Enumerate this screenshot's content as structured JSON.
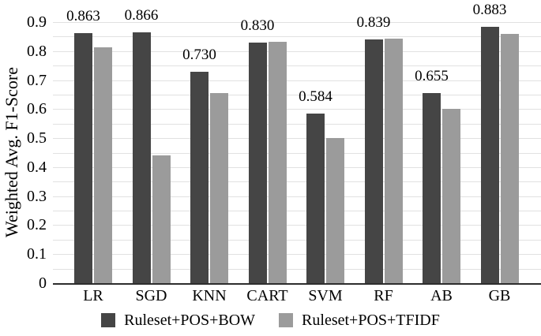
{
  "chart_data": {
    "type": "bar",
    "title": "",
    "xlabel": "",
    "ylabel": "Weighted Avg. F1-Score",
    "categories": [
      "LR",
      "SGD",
      "KNN",
      "CART",
      "SVM",
      "RF",
      "AB",
      "GB"
    ],
    "series": [
      {
        "name": "Ruleset+POS+BOW",
        "color": "#454545",
        "values": [
          0.863,
          0.866,
          0.73,
          0.83,
          0.584,
          0.839,
          0.655,
          0.883
        ],
        "data_labels": [
          "0.863",
          "0.866",
          "0.730",
          "0.830",
          "0.584",
          "0.839",
          "0.655",
          "0.883"
        ]
      },
      {
        "name": "Ruleset+POS+TFIDF",
        "color": "#9b9b9b",
        "values": [
          0.813,
          0.44,
          0.655,
          0.833,
          0.5,
          0.843,
          0.602,
          0.86
        ]
      }
    ],
    "ylim": [
      0,
      0.9
    ],
    "ytick_step": 0.1,
    "ytick_labels": [
      "0",
      "0.1",
      "0.2",
      "0.3",
      "0.4",
      "0.5",
      "0.6",
      "0.7",
      "0.8",
      "0.9"
    ],
    "grid": true,
    "grid_step": 0.05,
    "gridline_color": "#e1e1e1",
    "axis_color": "#2d2d2d",
    "legend_position": "bottom"
  }
}
